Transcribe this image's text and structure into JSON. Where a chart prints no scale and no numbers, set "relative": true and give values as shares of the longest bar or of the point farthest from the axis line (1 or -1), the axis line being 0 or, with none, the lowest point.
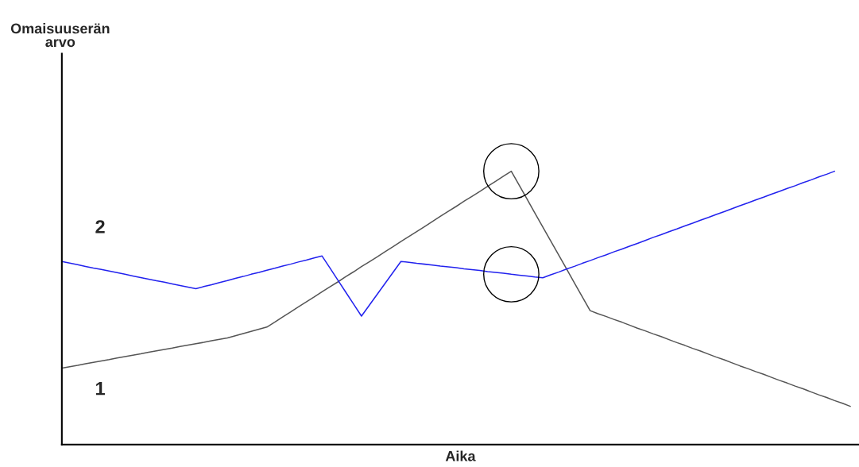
{
  "chart_data": {
    "type": "line",
    "relative": true,
    "xlabel": "Aika",
    "annotations": [
      "Omaisuuserän\narvo"
    ],
    "legend": false,
    "marker": "none",
    "line_style": "solid",
    "categories": [
      null,
      null,
      null,
      null,
      null,
      null,
      null,
      null,
      null,
      null,
      null,
      null,
      null,
      null,
      null,
      null,
      null,
      null,
      null,
      null,
      null,
      null,
      null,
      null,
      null,
      null,
      null,
      null,
      null,
      null,
      null,
      null,
      null,
      null,
      null,
      null,
      null,
      null,
      null,
      null,
      null,
      null,
      null,
      null,
      null,
      null,
      null,
      null,
      null,
      null,
      null,
      null,
      null,
      null,
      null,
      null,
      null,
      null,
      null,
      null,
      null,
      null,
      null,
      null,
      null,
      null,
      null,
      null,
      null,
      null,
      null,
      null,
      null,
      null,
      null,
      null,
      null,
      null,
      null,
      null,
      null,
      null,
      null,
      null,
      null,
      null,
      null,
      null,
      null,
      null,
      null,
      null,
      null,
      null,
      null,
      null,
      null,
      null,
      null,
      null,
      null
    ],
    "series": [
      {
        "name": "1",
        "color": "#555555",
        "values": [
          0.28,
          0.285,
          0.29,
          0.296,
          0.301,
          0.306,
          0.311,
          0.317,
          0.322,
          0.327,
          0.332,
          0.338,
          0.343,
          0.348,
          0.353,
          0.359,
          0.364,
          0.369,
          0.374,
          0.38,
          0.385,
          0.39,
          0.398,
          0.406,
          0.414,
          0.422,
          0.43,
          0.448,
          0.467,
          0.485,
          0.504,
          0.522,
          0.54,
          0.559,
          0.577,
          0.595,
          0.614,
          0.632,
          0.651,
          0.669,
          0.687,
          0.706,
          0.724,
          0.743,
          0.761,
          0.779,
          0.797,
          0.816,
          0.835,
          0.853,
          0.871,
          0.89,
          0.908,
          0.926,
          0.945,
          0.963,
          0.982,
          1.0,
          0.949,
          0.898,
          0.847,
          0.796,
          0.745,
          0.694,
          0.643,
          0.592,
          0.541,
          0.49,
          0.479,
          0.469,
          0.458,
          0.448,
          0.437,
          0.426,
          0.416,
          0.405,
          0.395,
          0.384,
          0.373,
          0.363,
          0.352,
          0.342,
          0.331,
          0.32,
          0.31,
          0.299,
          0.288,
          0.278,
          0.267,
          0.257,
          0.246,
          0.235,
          0.225,
          0.214,
          0.204,
          0.193,
          0.182,
          0.172,
          0.161,
          0.151,
          0.14
        ]
      },
      {
        "name": "2",
        "color": "#2222ee",
        "values": [
          0.67,
          0.664,
          0.658,
          0.652,
          0.646,
          0.641,
          0.635,
          0.629,
          0.623,
          0.617,
          0.611,
          0.605,
          0.599,
          0.594,
          0.588,
          0.582,
          0.576,
          0.57,
          0.578,
          0.585,
          0.593,
          0.6,
          0.608,
          0.615,
          0.623,
          0.63,
          0.638,
          0.645,
          0.653,
          0.66,
          0.668,
          0.675,
          0.683,
          0.69,
          0.646,
          0.602,
          0.558,
          0.514,
          0.47,
          0.51,
          0.55,
          0.59,
          0.63,
          0.67,
          0.667,
          0.663,
          0.66,
          0.657,
          0.653,
          0.65,
          0.647,
          0.643,
          0.64,
          0.637,
          0.633,
          0.63,
          0.627,
          0.623,
          0.62,
          0.617,
          0.613,
          0.61,
          0.621,
          0.631,
          0.642,
          0.652,
          0.663,
          0.673,
          0.684,
          0.694,
          0.705,
          0.715,
          0.726,
          0.736,
          0.747,
          0.758,
          0.768,
          0.779,
          0.789,
          0.8,
          0.81,
          0.821,
          0.831,
          0.842,
          0.852,
          0.863,
          0.874,
          0.884,
          0.895,
          0.905,
          0.916,
          0.926,
          0.937,
          0.947,
          0.958,
          0.968,
          0.979,
          0.989,
          1.0,
          null,
          null
        ]
      }
    ]
  }
}
